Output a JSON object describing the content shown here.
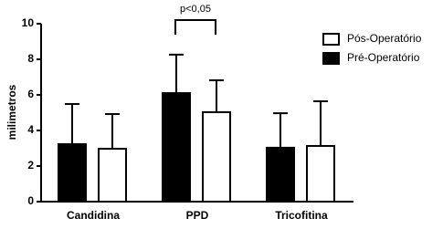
{
  "chart_data": {
    "type": "bar",
    "y_label": "milimetros",
    "annotation": "p<0,05",
    "categories": [
      "Candidina",
      "PPD",
      "Tricofitina"
    ],
    "series": [
      {
        "name": "Pré-Operatório",
        "color": "#000000",
        "values": [
          3.23,
          6.1,
          3.03
        ],
        "errors": [
          2.26,
          2.16,
          1.94
        ]
      },
      {
        "name": "Pós-Operatório",
        "color": "#ffffff",
        "values": [
          2.97,
          5.03,
          3.13
        ],
        "errors": [
          1.95,
          1.79,
          2.51
        ]
      }
    ],
    "ylim": [
      0,
      10
    ],
    "yticks": [
      0,
      2,
      4,
      6,
      8,
      10
    ],
    "legend": "upper right"
  }
}
